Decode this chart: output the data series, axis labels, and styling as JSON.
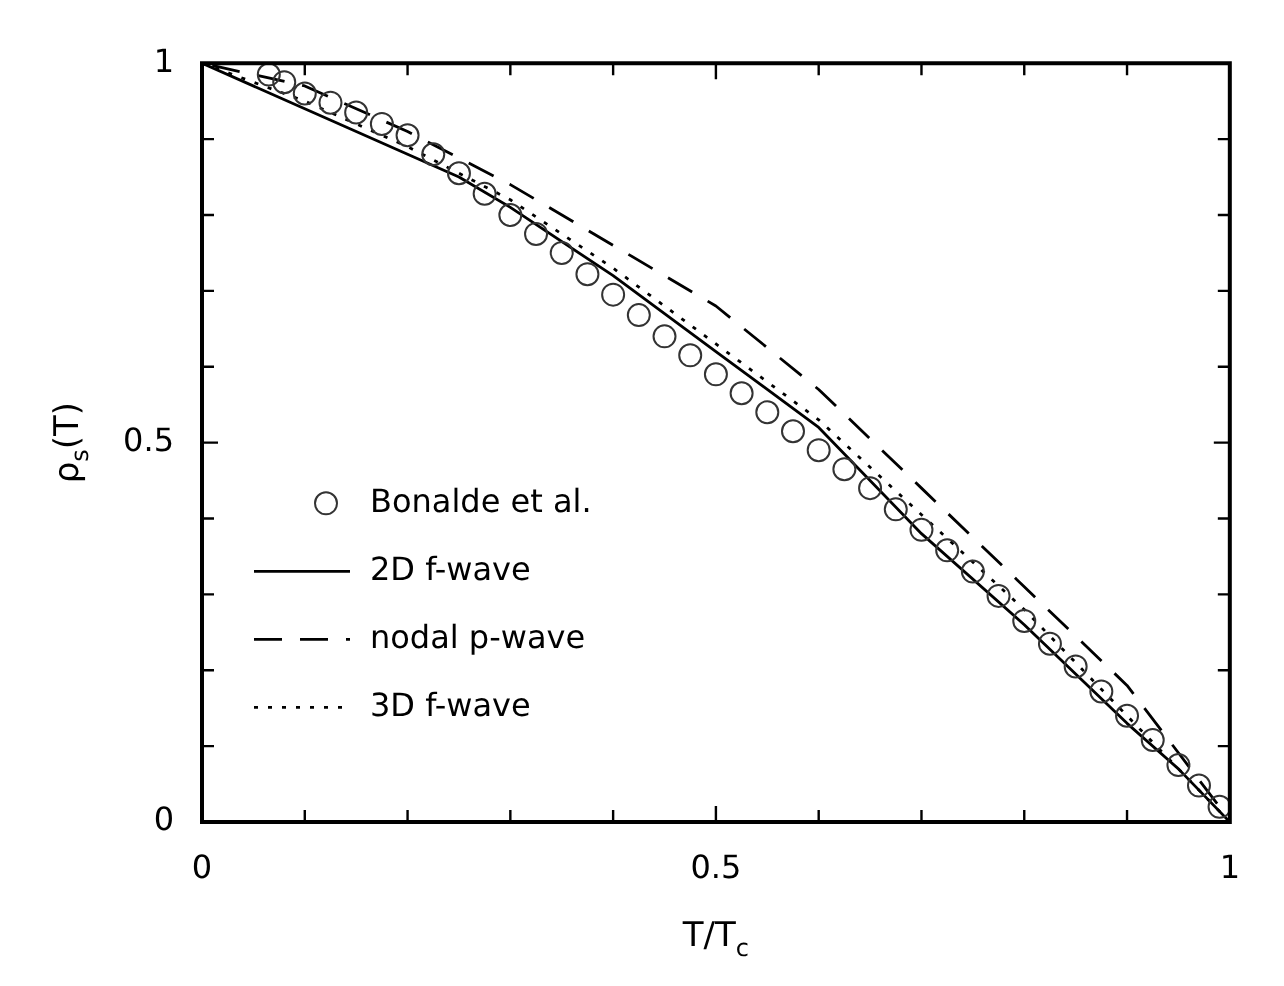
{
  "chart_data": {
    "type": "line",
    "xlabel": "T/T$_{c}$",
    "ylabel": "ρ$_{s}$(T)",
    "xlim": [
      0,
      1
    ],
    "ylim": [
      0,
      1
    ],
    "xticks": [
      0,
      {
        "value": 0.1,
        "label": null
      },
      {
        "value": 0.2,
        "label": null
      },
      {
        "value": 0.3,
        "label": null
      },
      {
        "value": 0.4,
        "label": null
      },
      0.5,
      {
        "value": 0.6,
        "label": null
      },
      {
        "value": 0.7,
        "label": null
      },
      {
        "value": 0.8,
        "label": null
      },
      {
        "value": 0.9,
        "label": null
      },
      1
    ],
    "yticks": [
      0,
      {
        "value": 0.1,
        "label": null
      },
      {
        "value": 0.2,
        "label": null
      },
      {
        "value": 0.3,
        "label": null
      },
      {
        "value": 0.4,
        "label": null
      },
      0.5,
      {
        "value": 0.6,
        "label": null
      },
      {
        "value": 0.7,
        "label": null
      },
      {
        "value": 0.8,
        "label": null
      },
      {
        "value": 0.9,
        "label": null
      },
      1
    ],
    "grid": false,
    "legend": "left",
    "series": [
      {
        "name": "Bonalde et al.",
        "type": "scatter",
        "marker": "circle",
        "color": "#333333",
        "x": [
          0.065,
          0.08,
          0.1,
          0.125,
          0.15,
          0.175,
          0.2,
          0.225,
          0.25,
          0.275,
          0.3,
          0.325,
          0.35,
          0.375,
          0.4,
          0.425,
          0.45,
          0.475,
          0.5,
          0.525,
          0.55,
          0.575,
          0.6,
          0.625,
          0.65,
          0.675,
          0.7,
          0.725,
          0.75,
          0.775,
          0.8,
          0.825,
          0.85,
          0.875,
          0.9,
          0.925,
          0.95,
          0.97,
          0.99
        ],
        "values": [
          0.985,
          0.975,
          0.96,
          0.948,
          0.935,
          0.92,
          0.905,
          0.88,
          0.855,
          0.828,
          0.8,
          0.775,
          0.75,
          0.722,
          0.695,
          0.668,
          0.64,
          0.615,
          0.59,
          0.565,
          0.54,
          0.515,
          0.49,
          0.465,
          0.44,
          0.412,
          0.385,
          0.358,
          0.33,
          0.298,
          0.265,
          0.235,
          0.205,
          0.172,
          0.14,
          0.108,
          0.075,
          0.048,
          0.02
        ]
      },
      {
        "name": "2D f-wave",
        "line_style": "solid",
        "marker": "none",
        "color": "#000000",
        "x": [
          0,
          0.1,
          0.2,
          0.25,
          0.3,
          0.4,
          0.5,
          0.6,
          0.7,
          0.8,
          0.9,
          0.95,
          1
        ],
        "values": [
          1,
          0.94,
          0.88,
          0.85,
          0.81,
          0.72,
          0.62,
          0.52,
          0.38,
          0.26,
          0.13,
          0.07,
          0
        ]
      },
      {
        "name": "nodal p-wave",
        "line_style": "dashed",
        "marker": "none",
        "color": "#000000",
        "x": [
          0.01,
          0.1,
          0.2,
          0.3,
          0.4,
          0.5,
          0.6,
          0.7,
          0.8,
          0.9,
          0.99
        ],
        "values": [
          0.997,
          0.97,
          0.91,
          0.84,
          0.76,
          0.68,
          0.57,
          0.44,
          0.31,
          0.18,
          0.02
        ]
      },
      {
        "name": "3D f-wave",
        "line_style": "dotted",
        "marker": "none",
        "color": "#000000",
        "x": [
          0,
          0.1,
          0.2,
          0.3,
          0.4,
          0.5,
          0.6,
          0.7,
          0.8,
          0.9,
          1
        ],
        "values": [
          1,
          0.95,
          0.89,
          0.82,
          0.73,
          0.63,
          0.53,
          0.405,
          0.28,
          0.14,
          0
        ]
      }
    ]
  }
}
